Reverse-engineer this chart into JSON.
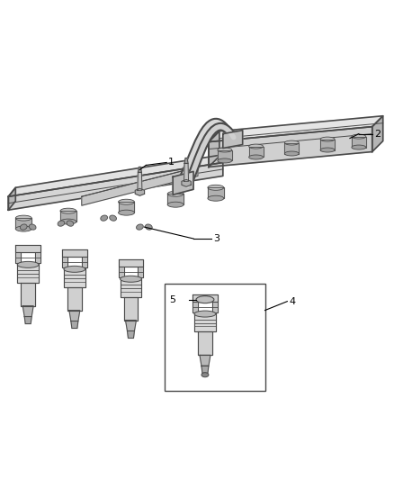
{
  "background_color": "#ffffff",
  "fig_width": 4.38,
  "fig_height": 5.33,
  "dpi": 100,
  "line_color": "#4a4a4a",
  "light_gray": "#d0d0d0",
  "mid_gray": "#a8a8a8",
  "dark_gray": "#787878",
  "label_fontsize": 8,
  "label_color": "#000000",
  "lw_main": 1.2,
  "lw_thin": 0.7,
  "lw_thick": 2.2
}
